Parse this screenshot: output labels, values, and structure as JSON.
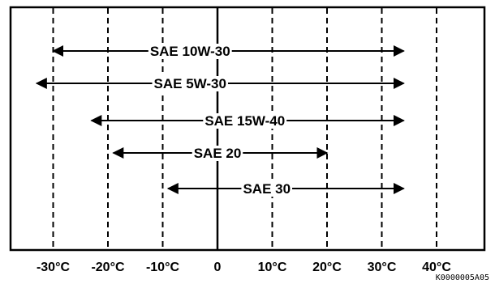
{
  "chart_data": {
    "type": "range-bar",
    "x_unit": "°C",
    "xlim": [
      -35,
      50
    ],
    "ticks": [
      {
        "value": -30,
        "label": "-30°C"
      },
      {
        "value": -20,
        "label": "-20°C"
      },
      {
        "value": -10,
        "label": "-10°C"
      },
      {
        "value": 0,
        "label": "0"
      },
      {
        "value": 10,
        "label": "10°C"
      },
      {
        "value": 20,
        "label": "20°C"
      },
      {
        "value": 30,
        "label": "30°C"
      },
      {
        "value": 40,
        "label": "40°C"
      }
    ],
    "series": [
      {
        "name": "SAE 10W-30",
        "min": -30,
        "max": 34,
        "label_center": -5
      },
      {
        "name": "SAE 5W-30",
        "min": -33,
        "max": 34,
        "label_center": -5
      },
      {
        "name": "SAE 15W-40",
        "min": -23,
        "max": 34,
        "label_center": 5
      },
      {
        "name": "SAE 20",
        "min": -19,
        "max": 20,
        "label_center": 0
      },
      {
        "name": "SAE 30",
        "min": -9,
        "max": 34,
        "label_center": 9
      }
    ],
    "grid": true
  },
  "figure_code": "K0000005A05"
}
